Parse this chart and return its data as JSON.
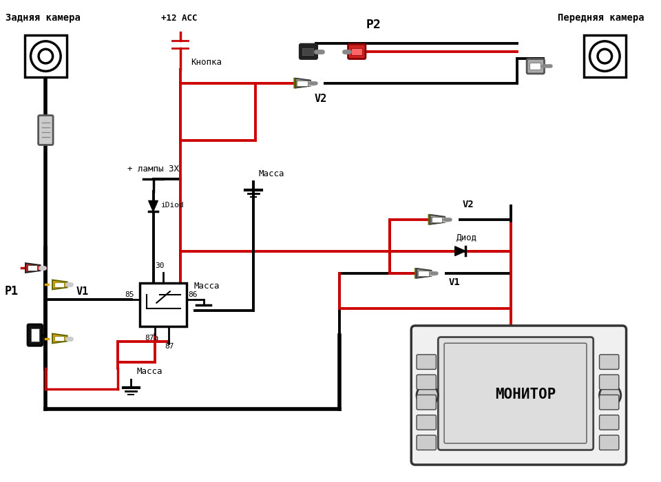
{
  "bg_color": "#ffffff",
  "text_rear_camera": "Задняя камера",
  "text_front_camera": "Передняя камера",
  "text_monitor": "МОНИТОР",
  "text_massa1": "Масса",
  "text_massa2": "Масса",
  "text_massa3": "Масса",
  "text_p1": "P1",
  "text_p2": "P2",
  "text_v1_left": "V1",
  "text_v2_top": "V2",
  "text_v1_right": "V1",
  "text_v2_right": "V2",
  "text_knopka": "Кнопка",
  "text_plus12": "+12 ACC",
  "text_lampy": "+ лампы 3Х",
  "text_idiod": "iDiod",
  "text_diod": "Диод",
  "text_relay_30": "30",
  "text_relay_85": "85",
  "text_relay_86": "86",
  "text_relay_87a": "87а",
  "text_relay_87": "87",
  "BLACK": "#000000",
  "RED": "#cc0000",
  "YELLOW": "#ddaa00",
  "GRAY": "#888888",
  "LGRAY": "#cccccc",
  "DGRAY": "#555555"
}
